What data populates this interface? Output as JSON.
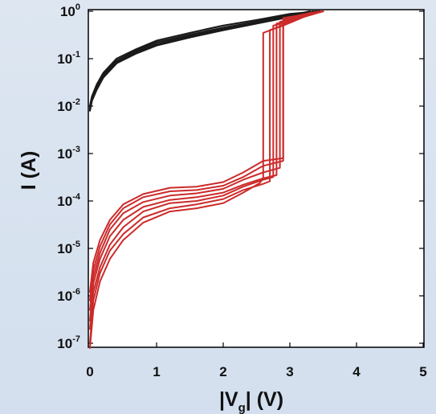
{
  "chart_data": {
    "type": "line",
    "title": "",
    "xlabel": {
      "main": "|V",
      "sub": "g",
      "rest": "| (V)"
    },
    "ylabel": "I  (A)",
    "x_scale": "linear",
    "y_scale": "log",
    "xlim": [
      0,
      5
    ],
    "ylim": [
      1e-07,
      1
    ],
    "x_ticks": [
      {
        "value": 0,
        "label": "0"
      },
      {
        "value": 1,
        "label": "1"
      },
      {
        "value": 2,
        "label": "2"
      },
      {
        "value": 3,
        "label": "3"
      },
      {
        "value": 4,
        "label": "4"
      },
      {
        "value": 5,
        "label": "5"
      }
    ],
    "y_ticks": [
      {
        "value": 1,
        "base": "10",
        "exp": "0"
      },
      {
        "value": 0.1,
        "base": "10",
        "exp": "-1"
      },
      {
        "value": 0.01,
        "base": "10",
        "exp": "-2"
      },
      {
        "value": 0.001,
        "base": "10",
        "exp": "-3"
      },
      {
        "value": 0.0001,
        "base": "10",
        "exp": "-4"
      },
      {
        "value": 1e-05,
        "base": "10",
        "exp": "-5"
      },
      {
        "value": 1e-06,
        "base": "10",
        "exp": "-6"
      },
      {
        "value": 1e-07,
        "base": "10",
        "exp": "-7"
      }
    ],
    "grid": false,
    "colors": {
      "black_series": "#1a1a1a",
      "red_series": "#cc2a2a"
    },
    "series": [
      {
        "color": "black",
        "x": [
          0,
          0.03,
          0.1,
          0.2,
          0.4,
          0.7,
          1.0,
          1.5,
          2.0,
          2.5,
          3.0,
          3.4
        ],
        "y": [
          0.009,
          0.014,
          0.025,
          0.045,
          0.09,
          0.15,
          0.22,
          0.32,
          0.45,
          0.6,
          0.82,
          1.0
        ]
      },
      {
        "color": "black",
        "x": [
          0,
          0.03,
          0.1,
          0.2,
          0.4,
          0.7,
          1.0,
          1.5,
          2.0,
          2.5,
          3.0,
          3.35
        ],
        "y": [
          0.008,
          0.013,
          0.022,
          0.04,
          0.08,
          0.13,
          0.19,
          0.28,
          0.4,
          0.55,
          0.76,
          1.0
        ]
      },
      {
        "color": "black",
        "x": [
          0,
          0.03,
          0.1,
          0.2,
          0.4,
          0.7,
          1.0,
          1.5,
          2.0,
          2.5,
          3.0,
          3.45
        ],
        "y": [
          0.01,
          0.016,
          0.028,
          0.05,
          0.1,
          0.16,
          0.24,
          0.35,
          0.5,
          0.65,
          0.88,
          1.0
        ]
      },
      {
        "color": "black",
        "x": [
          0,
          0.03,
          0.1,
          0.2,
          0.4,
          0.7,
          1.0,
          1.5,
          2.0,
          2.5,
          3.0,
          3.3
        ],
        "y": [
          0.0085,
          0.0135,
          0.024,
          0.043,
          0.085,
          0.14,
          0.2,
          0.3,
          0.42,
          0.57,
          0.79,
          1.0
        ]
      },
      {
        "color": "red",
        "x": [
          0,
          0.05,
          0.15,
          0.3,
          0.5,
          0.8,
          1.2,
          1.6,
          2.0,
          2.3,
          2.55,
          2.6,
          2.6,
          2.8,
          3.1,
          3.5
        ],
        "y": [
          4e-08,
          5e-07,
          2e-06,
          6e-06,
          1.5e-05,
          3.5e-05,
          6e-05,
          7e-05,
          9e-05,
          0.00015,
          0.00024,
          0.0003,
          0.35,
          0.45,
          0.7,
          1.0
        ]
      },
      {
        "color": "red",
        "x": [
          0,
          0.05,
          0.15,
          0.3,
          0.5,
          0.8,
          1.2,
          1.6,
          2.0,
          2.3,
          2.6,
          2.7,
          2.7,
          2.9,
          3.2,
          3.5
        ],
        "y": [
          1e-07,
          8e-07,
          3e-06,
          9e-06,
          2e-05,
          4.5e-05,
          7e-05,
          8.5e-05,
          0.00011,
          0.00017,
          0.00023,
          0.00026,
          0.4,
          0.5,
          0.75,
          1.0
        ]
      },
      {
        "color": "red",
        "x": [
          0,
          0.05,
          0.15,
          0.3,
          0.5,
          0.8,
          1.2,
          1.6,
          2.0,
          2.3,
          2.6,
          2.75,
          2.75,
          2.95,
          3.2,
          3.5
        ],
        "y": [
          2e-07,
          1.2e-06,
          4e-06,
          1.2e-05,
          2.8e-05,
          6e-05,
          9e-05,
          0.0001,
          0.00013,
          0.0002,
          0.00028,
          0.00032,
          0.5,
          0.58,
          0.8,
          1.0
        ]
      },
      {
        "color": "red",
        "x": [
          0,
          0.05,
          0.15,
          0.3,
          0.5,
          0.8,
          1.2,
          1.6,
          2.0,
          2.3,
          2.6,
          2.8,
          2.8,
          3.0,
          3.25,
          3.5
        ],
        "y": [
          3e-07,
          1.8e-06,
          6e-06,
          1.8e-05,
          4e-05,
          7.5e-05,
          0.000105,
          0.00012,
          0.00015,
          0.00022,
          0.0003,
          0.00035,
          0.55,
          0.62,
          0.85,
          1.0
        ]
      },
      {
        "color": "red",
        "x": [
          0,
          0.05,
          0.15,
          0.3,
          0.5,
          0.8,
          1.2,
          1.6,
          2.0,
          2.3,
          2.6,
          2.85,
          2.85,
          3.05,
          3.3,
          3.5
        ],
        "y": [
          5e-07,
          2.5e-06,
          8e-06,
          2.5e-05,
          5.5e-05,
          9.5e-05,
          0.00013,
          0.000145,
          0.00018,
          0.00028,
          0.0004,
          0.0005,
          0.6,
          0.68,
          0.88,
          1.0
        ]
      },
      {
        "color": "red",
        "x": [
          0,
          0.05,
          0.15,
          0.3,
          0.5,
          0.8,
          1.2,
          1.6,
          2.0,
          2.3,
          2.6,
          2.9,
          2.9,
          3.05,
          3.3,
          3.5
        ],
        "y": [
          8e-07,
          3.5e-06,
          1.1e-05,
          3.2e-05,
          7e-05,
          0.00012,
          0.00016,
          0.00017,
          0.00021,
          0.00032,
          0.00055,
          0.0007,
          0.65,
          0.72,
          0.9,
          1.0
        ]
      },
      {
        "color": "red",
        "x": [
          0,
          0.05,
          0.15,
          0.3,
          0.5,
          0.8,
          1.2,
          1.6,
          2.0,
          2.3,
          2.6,
          2.9,
          2.9,
          3.1,
          3.3,
          3.5
        ],
        "y": [
          1.2e-06,
          5e-06,
          1.5e-05,
          4e-05,
          8.5e-05,
          0.00014,
          0.00019,
          0.0002,
          0.00025,
          0.0004,
          0.0007,
          0.0008,
          0.72,
          0.8,
          0.92,
          1.0
        ]
      }
    ]
  }
}
